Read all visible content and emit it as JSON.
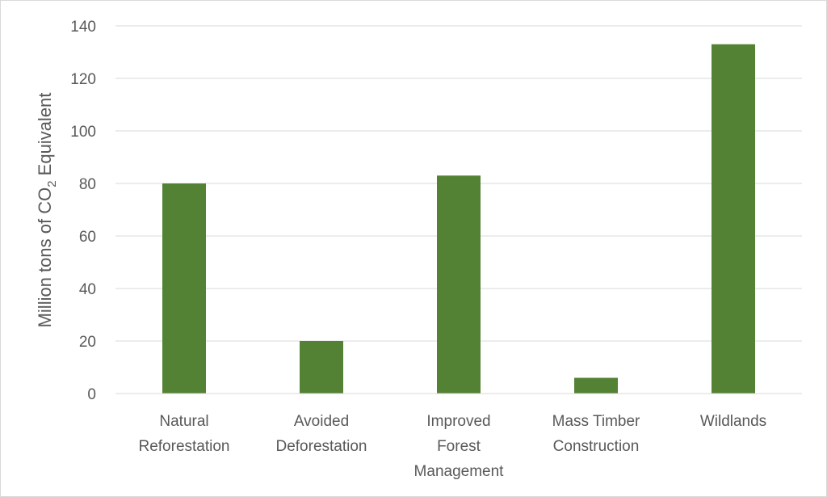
{
  "chart_data": {
    "type": "bar",
    "title": "",
    "xlabel": "",
    "ylabel": "Million tons of CO",
    "ylabel_subscript": "2",
    "ylabel_suffix": " Equivalent",
    "categories": [
      [
        "Natural",
        "Reforestation"
      ],
      [
        "Avoided",
        "Deforestation"
      ],
      [
        "Improved",
        "Forest",
        "Management"
      ],
      [
        "Mass Timber",
        "Construction"
      ],
      [
        "Wildlands"
      ]
    ],
    "values": [
      80,
      20,
      83,
      6,
      133
    ],
    "ylim": [
      0,
      140
    ],
    "yticks": [
      0,
      20,
      40,
      60,
      80,
      100,
      120,
      140
    ],
    "grid": true,
    "legend": "none",
    "bar_color": "#548235",
    "grid_color": "#d9d9d9"
  }
}
